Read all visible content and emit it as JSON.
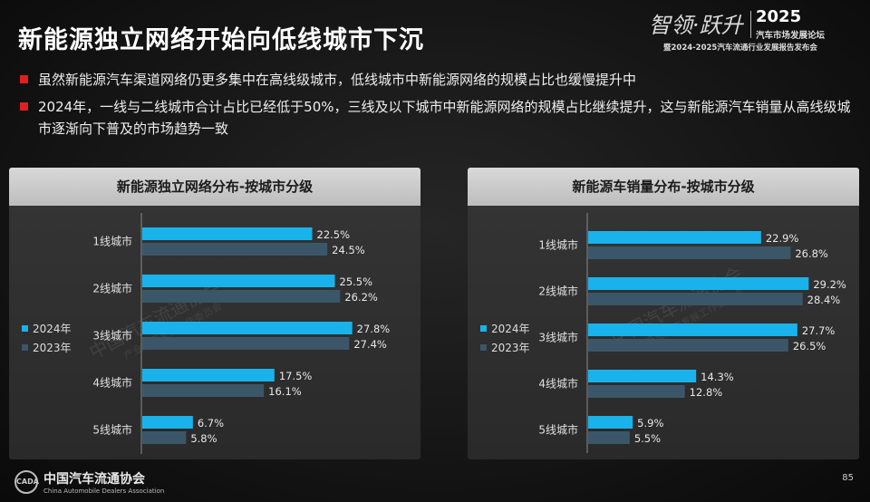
{
  "title": "新能源独立网络开始向低线城市下沉",
  "brand": {
    "calligraphy": "智领·跃升",
    "year": "2025",
    "forum": "汽车市场发展论坛",
    "subtitle": "暨2024-2025汽车流通行业发展报告发布会"
  },
  "bullets": [
    "虽然新能源汽车渠道网络仍更多集中在高线级城市，低线城市中新能源网络的规模占比也缓慢提升中",
    "2024年，一线与二线城市合计占比已经低于50%，三线及以下城市中新能源网络的规模占比继续提升，这与新能源汽车销量从高线级城市逐渐向下普及的市场趋势一致"
  ],
  "colors": {
    "y2024": "#1ab2ea",
    "y2023": "#3b5668",
    "accent": "#e02020"
  },
  "chart_data": [
    {
      "type": "bar",
      "orientation": "horizontal",
      "title": "新能源独立网络分布-按城市分级",
      "categories": [
        "1线城市",
        "2线城市",
        "3线城市",
        "4线城市",
        "5线城市"
      ],
      "series": [
        {
          "name": "2024年",
          "values": [
            22.5,
            25.5,
            27.8,
            17.5,
            6.7
          ],
          "labels": [
            "22.5%",
            "25.5%",
            "27.8%",
            "17.5%",
            "6.7%"
          ]
        },
        {
          "name": "2023年",
          "values": [
            24.5,
            26.2,
            27.4,
            16.1,
            5.8
          ],
          "labels": [
            "24.5%",
            "26.2%",
            "27.4%",
            "16.1%",
            "5.8%"
          ]
        }
      ],
      "legend": "left",
      "grid": false
    },
    {
      "type": "bar",
      "orientation": "horizontal",
      "title": "新能源车销量分布-按城市分级",
      "categories": [
        "1线城市",
        "2线城市",
        "3线城市",
        "4线城市",
        "5线城市"
      ],
      "series": [
        {
          "name": "2024年",
          "values": [
            22.9,
            29.2,
            27.7,
            14.3,
            5.9
          ],
          "labels": [
            "22.9%",
            "29.2%",
            "27.7%",
            "14.3%",
            "5.9%"
          ]
        },
        {
          "name": "2023年",
          "values": [
            26.8,
            28.4,
            26.5,
            12.8,
            5.5
          ],
          "labels": [
            "26.8%",
            "28.4%",
            "26.5%",
            "12.8%",
            "5.5%"
          ]
        }
      ],
      "legend": "left",
      "grid": false
    }
  ],
  "watermark": {
    "cn": "中国汽车流通协会",
    "en": "China Automobile Dealers Association",
    "sub": "产业协调发展工作委员会",
    "abbr": "CADA"
  },
  "footer": {
    "logo_cn": "中国汽车流通协会",
    "logo_en": "China Automobile Dealers Association",
    "logo_abbr": "CADA",
    "page": "85"
  }
}
